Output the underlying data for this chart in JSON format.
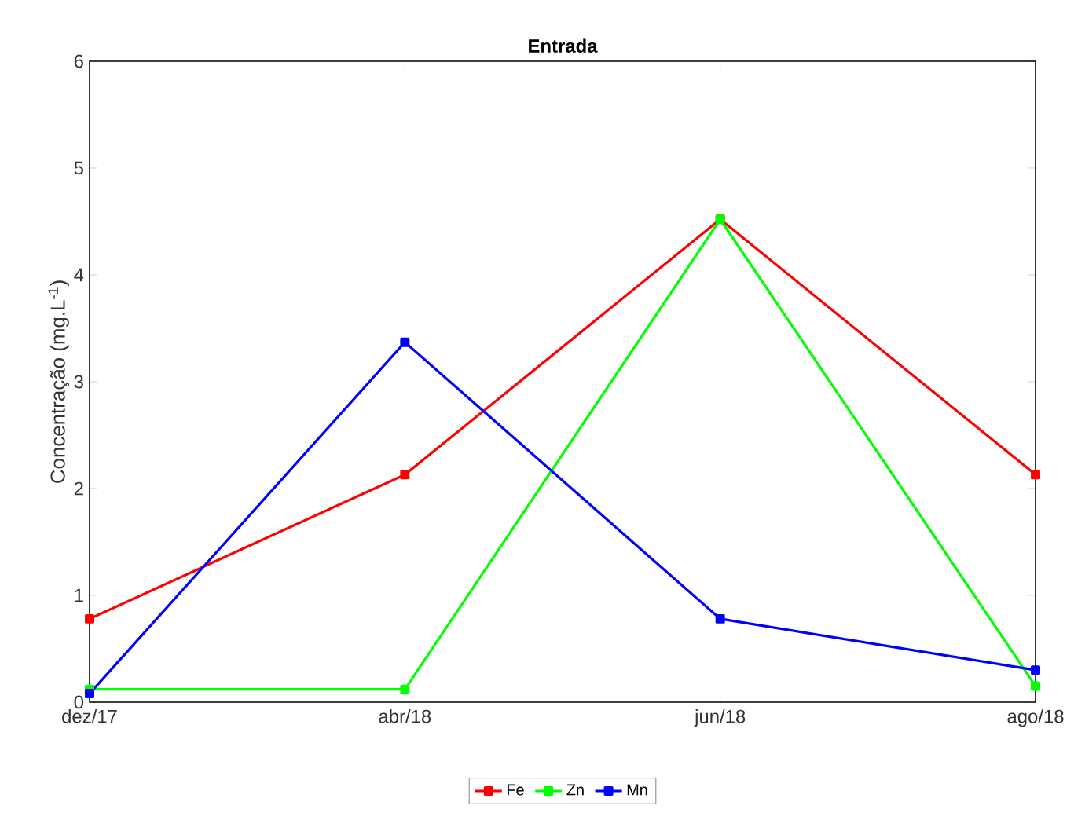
{
  "chart_data": {
    "type": "line",
    "title": "Entrada",
    "ylabel": "Concentração (mg.L$^{-1}$)",
    "categories": [
      "dez/17",
      "abr/18",
      "jun/18",
      "ago/18"
    ],
    "series": [
      {
        "name": "Fe",
        "color": "#ff0000",
        "values": [
          0.78,
          2.13,
          4.52,
          2.13
        ]
      },
      {
        "name": "Zn",
        "color": "#00ff00",
        "values": [
          0.12,
          0.12,
          4.52,
          0.15
        ]
      },
      {
        "name": "Mn",
        "color": "#0000ff",
        "values": [
          0.08,
          3.37,
          0.78,
          0.3
        ]
      }
    ],
    "ylim": [
      0,
      6
    ],
    "yticks": [
      0,
      1,
      2,
      3,
      4,
      5,
      6
    ],
    "grid": false,
    "legend": "bottom",
    "marker": "square",
    "line_style": "solid"
  }
}
